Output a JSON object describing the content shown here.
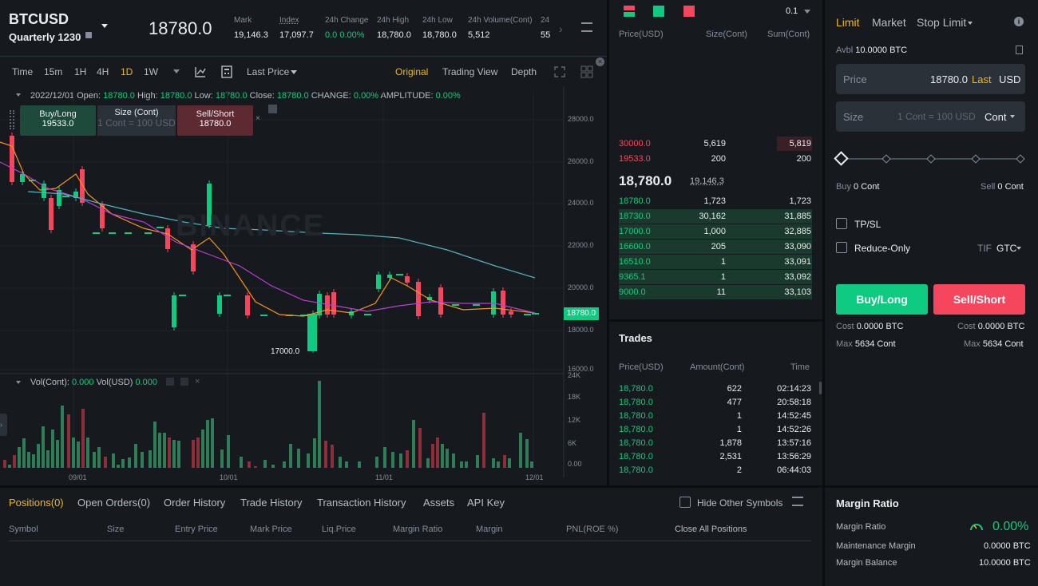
{
  "header": {
    "symbol": "BTCUSD",
    "contract": "Quarterly 1230",
    "last_price": "18780.0",
    "stats": [
      {
        "label": "Mark",
        "value": "19,146.3"
      },
      {
        "label": "Index",
        "value": "17,097.7"
      },
      {
        "label": "24h Change",
        "value": "0.0 0.00%"
      },
      {
        "label": "24h High",
        "value": "18,780.0"
      },
      {
        "label": "24h Low",
        "value": "18,780.0"
      },
      {
        "label": "24h Volume(Cont)",
        "value": "5,512"
      },
      {
        "label": "24",
        "value": "55"
      }
    ]
  },
  "chart_toolbar": {
    "intervals": [
      "Time",
      "15m",
      "1H",
      "4H",
      "1D",
      "1W"
    ],
    "active_interval": "1D",
    "price_type": "Last Price",
    "views": [
      "Original",
      "Trading View",
      "Depth"
    ],
    "active_view": "Original"
  },
  "ohlc": {
    "date": "2022/12/01",
    "open": "18780.0",
    "high": "18780.0",
    "low": "18780.0",
    "close": "18780.0",
    "change": "0.00%",
    "amplitude": "0.00%"
  },
  "quick_trade": {
    "buy_label": "Buy/Long",
    "buy_price": "19533.0",
    "size_label": "Size (Cont)",
    "size_placeholder": "1 Cont = 100 USD",
    "sell_label": "Sell/Short",
    "sell_price": "18780.0"
  },
  "chart_data": {
    "type": "candlestick",
    "price_ticks": [
      "28000.0",
      "26000.0",
      "24000.0",
      "22000.0",
      "20000.0",
      "18000.0",
      "16000.0"
    ],
    "last_price_tag": "18780.0",
    "low_annotation": "17000.0",
    "watermark": "BINANCE",
    "x_ticks": [
      "09/01",
      "10/01",
      "11/01",
      "12/01"
    ],
    "vol_ticks": [
      "24K",
      "18K",
      "12K",
      "6K",
      "0.00"
    ],
    "volume_legend": {
      "cont_label": "Vol(Cont):",
      "cont_value": "0.000",
      "usd_label": "Vol(USD)",
      "usd_value": "0.000"
    },
    "colors": {
      "up": "#0ecb81",
      "down": "#f6465d",
      "ma1": "#f7931a",
      "ma2": "#c03bd8",
      "ma3": "#4fb3bf"
    }
  },
  "orderbook": {
    "tick": "0.1",
    "headers": [
      "Price(USD)",
      "Size(Cont)",
      "Sum(Cont)"
    ],
    "asks": [
      {
        "price": "30000.0",
        "size": "5,619",
        "sum": "5,819"
      },
      {
        "price": "19533.0",
        "size": "200",
        "sum": "200"
      }
    ],
    "mid_price": "18,780.0",
    "mark_price": "19,146.3",
    "bids": [
      {
        "price": "18780.0",
        "size": "1,723",
        "sum": "1,723"
      },
      {
        "price": "18730.0",
        "size": "30,162",
        "sum": "31,885"
      },
      {
        "price": "17000.0",
        "size": "1,000",
        "sum": "32,885"
      },
      {
        "price": "16600.0",
        "size": "205",
        "sum": "33,090"
      },
      {
        "price": "16510.0",
        "size": "1",
        "sum": "33,091"
      },
      {
        "price": "9365.1",
        "size": "1",
        "sum": "33,092"
      },
      {
        "price": "9000.0",
        "size": "11",
        "sum": "33,103"
      }
    ]
  },
  "trades": {
    "title": "Trades",
    "headers": [
      "Price(USD)",
      "Amount(Cont)",
      "Time"
    ],
    "rows": [
      {
        "price": "18,780.0",
        "amount": "622",
        "time": "02:14:23"
      },
      {
        "price": "18,780.0",
        "amount": "477",
        "time": "20:58:18"
      },
      {
        "price": "18,780.0",
        "amount": "1",
        "time": "14:52:45"
      },
      {
        "price": "18,780.0",
        "amount": "1",
        "time": "14:52:26"
      },
      {
        "price": "18,780.0",
        "amount": "1,878",
        "time": "13:57:16"
      },
      {
        "price": "18,780.0",
        "amount": "2,531",
        "time": "13:56:29"
      },
      {
        "price": "18,780.0",
        "amount": "2",
        "time": "06:44:03"
      }
    ]
  },
  "order_form": {
    "tabs": [
      "Limit",
      "Market",
      "Stop Limit"
    ],
    "active_tab": "Limit",
    "avbl_label": "Avbl",
    "avbl_value": "10.0000 BTC",
    "price_label": "Price",
    "price_value": "18780.0",
    "last_label": "Last",
    "currency": "USD",
    "size_label": "Size",
    "size_placeholder": "1 Cont = 100 USD",
    "size_unit": "Cont",
    "buy_label": "Buy",
    "buy_value": "0 Cont",
    "sell_label": "Sell",
    "sell_value": "0 Cont",
    "tpsl_label": "TP/SL",
    "reduce_label": "Reduce-Only",
    "tif_label": "TIF",
    "tif_value": "GTC",
    "buy_button": "Buy/Long",
    "sell_button": "Sell/Short",
    "cost_label": "Cost",
    "cost_buy": "0.0000 BTC",
    "cost_sell": "0.0000 BTC",
    "max_label": "Max",
    "max_buy": "5634 Cont",
    "max_sell": "5634 Cont"
  },
  "bottom": {
    "tabs": [
      "Positions(0)",
      "Open Orders(0)",
      "Order History",
      "Trade History",
      "Transaction History",
      "Assets",
      "API Key"
    ],
    "active_tab": "Positions(0)",
    "hide_symbols": "Hide Other Symbols",
    "columns": [
      "Symbol",
      "Size",
      "Entry Price",
      "Mark Price",
      "Liq.Price",
      "Margin Ratio",
      "Margin",
      "PNL(ROE %)",
      "Close All Positions"
    ]
  },
  "margin": {
    "title": "Margin Ratio",
    "ratio_label": "Margin Ratio",
    "ratio_value": "0.00%",
    "maint_label": "Maintenance Margin",
    "maint_value": "0.0000 BTC",
    "balance_label": "Margin Balance",
    "balance_value": "10.0000 BTC"
  }
}
